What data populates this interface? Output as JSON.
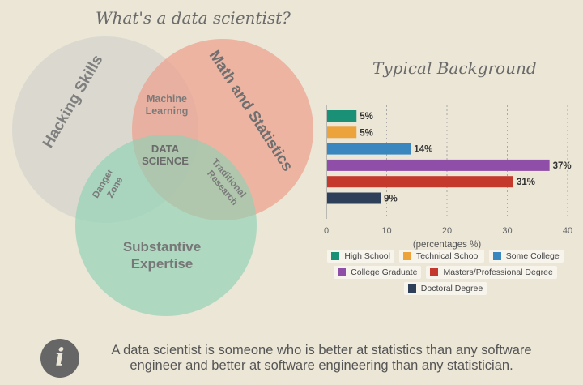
{
  "venn": {
    "title": "What's a data scientist?",
    "circles": {
      "hacking": "Hacking Skills",
      "math": "Math and Statistics",
      "expertise_line1": "Substantive",
      "expertise_line2": "Expertise"
    },
    "overlaps": {
      "ml_line1": "Machine",
      "ml_line2": "Learning",
      "ds_line1": "DATA",
      "ds_line2": "SCIENCE",
      "danger_line1": "Danger",
      "danger_line2": "Zone",
      "research_line1": "Traditional",
      "research_line2": "Research"
    },
    "colors": {
      "hacking": "#d6d4cc",
      "math": "#ee9e8c",
      "expertise": "#8fd1b5"
    }
  },
  "chart_data": {
    "type": "bar",
    "orientation": "horizontal",
    "title": "Typical Background",
    "categories": [
      "High School",
      "Technical School",
      "Some College",
      "College Graduate",
      "Masters/Professional Degree",
      "Doctoral Degree"
    ],
    "values": [
      5,
      5,
      14,
      37,
      31,
      9
    ],
    "value_labels": [
      "5%",
      "5%",
      "14%",
      "37%",
      "31%",
      "9%"
    ],
    "colors": [
      "#1a9077",
      "#eda33c",
      "#3a87c0",
      "#8f4fa8",
      "#c5392d",
      "#2e4059"
    ],
    "xlabel": "(percentages %)",
    "xlim": [
      0,
      40
    ],
    "xticks": [
      "0",
      "10",
      "20",
      "30",
      "40"
    ],
    "grid": true,
    "legend_position": "bottom"
  },
  "footer": {
    "icon": "info-icon",
    "icon_glyph": "i",
    "line1": "A data scientist is someone who is better at statistics than any software",
    "line2": "engineer and better at software engineering than any statistician."
  }
}
